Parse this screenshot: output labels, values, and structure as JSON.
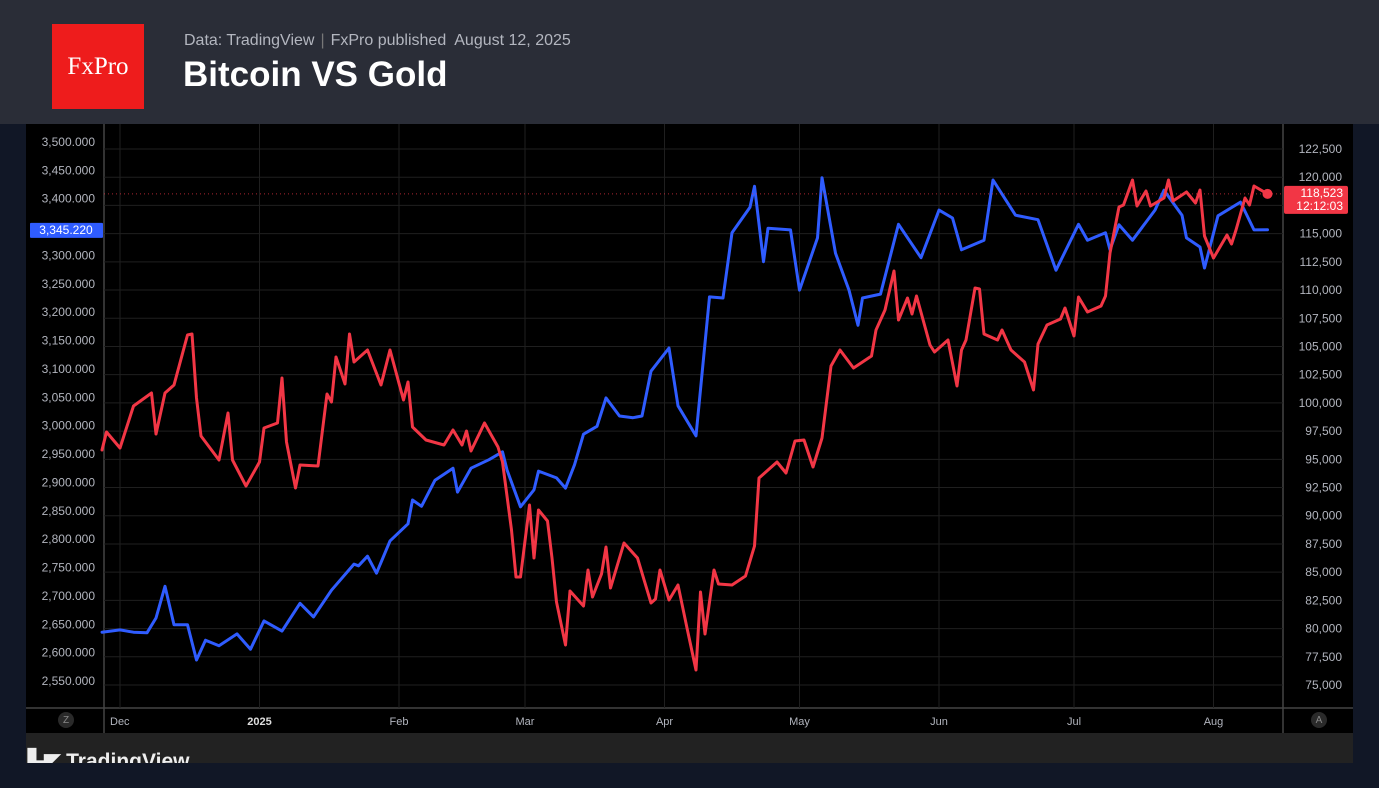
{
  "header": {
    "logo_text": "FxPro",
    "source": "Data: TradingView",
    "publisher": "FxPro published",
    "date": "August 12, 2025",
    "title": "Bitcoin VS Gold"
  },
  "footer": {
    "brand": "TradingView"
  },
  "buttons": {
    "left_scale": "Z",
    "right_scale": "A"
  },
  "colors": {
    "gold": "#2f5cff",
    "bitcoin": "#f23645",
    "grid": "#1f1f1f",
    "axis_text": "#b2b5be"
  },
  "chart_data": {
    "type": "line",
    "title": "Bitcoin VS Gold",
    "x_unit": "days since 2024-12-01",
    "x_ticks": [
      {
        "label": "Dec",
        "day": 0,
        "bold": false
      },
      {
        "label": "2025",
        "day": 31,
        "bold": true
      },
      {
        "label": "Feb",
        "day": 62,
        "bold": false
      },
      {
        "label": "Mar",
        "day": 90,
        "bold": false
      },
      {
        "label": "Apr",
        "day": 121,
        "bold": false
      },
      {
        "label": "May",
        "day": 151,
        "bold": false
      },
      {
        "label": "Jun",
        "day": 182,
        "bold": false
      },
      {
        "label": "Jul",
        "day": 212,
        "bold": false
      },
      {
        "label": "Aug",
        "day": 243,
        "bold": false
      }
    ],
    "left_axis": {
      "ylim": [
        2520,
        3510
      ],
      "ticks": [
        3500,
        3450,
        3400,
        3350,
        3300,
        3250,
        3200,
        3150,
        3100,
        3050,
        3000,
        2950,
        2900,
        2850,
        2800,
        2750,
        2700,
        2650,
        2600,
        2550
      ],
      "tick_labels": [
        "3,500.000",
        "3,450.000",
        "3,400.000",
        "3,300.000",
        "3,250.000",
        "3,200.000",
        "3,150.000",
        "3,100.000",
        "3,050.000",
        "3,000.000",
        "2,950.000",
        "2,900.000",
        "2,850.000",
        "2,800.000",
        "2,750.000",
        "2,700.000",
        "2,650.000",
        "2,600.000",
        "2,550.000"
      ],
      "tick_values": [
        3500,
        3450,
        3400,
        3300,
        3250,
        3200,
        3150,
        3100,
        3050,
        3000,
        2950,
        2900,
        2850,
        2800,
        2750,
        2700,
        2650,
        2600,
        2550
      ],
      "last_label": "3,345.220",
      "last_value": 3345.22
    },
    "right_axis": {
      "ylim": [
        73500,
        124000
      ],
      "tick_labels": [
        "122,500",
        "120,000",
        "115,000",
        "112,500",
        "110,000",
        "107,500",
        "105,000",
        "102,500",
        "100,000",
        "97,500",
        "95,000",
        "92,500",
        "90,000",
        "87,500",
        "85,000",
        "82,500",
        "80,000",
        "77,500",
        "75,000"
      ],
      "tick_values": [
        122500,
        120000,
        115000,
        112500,
        110000,
        107500,
        105000,
        102500,
        100000,
        97500,
        95000,
        92500,
        90000,
        87500,
        85000,
        82500,
        80000,
        77500,
        75000
      ],
      "last_label": "118,523",
      "countdown": "12:12:03",
      "last_value": 118523
    },
    "series": [
      {
        "name": "Gold",
        "axis": "left",
        "color": "#2f5cff",
        "points": [
          [
            -4,
            2636
          ],
          [
            0,
            2640
          ],
          [
            3,
            2636
          ],
          [
            6,
            2635
          ],
          [
            8,
            2661
          ],
          [
            10,
            2717
          ],
          [
            12,
            2649
          ],
          [
            15,
            2649
          ],
          [
            17,
            2587
          ],
          [
            19,
            2622
          ],
          [
            22,
            2612
          ],
          [
            26,
            2633
          ],
          [
            29,
            2606
          ],
          [
            32,
            2656
          ],
          [
            36,
            2638
          ],
          [
            40,
            2687
          ],
          [
            43,
            2663
          ],
          [
            47,
            2710
          ],
          [
            52,
            2756
          ],
          [
            53,
            2753
          ],
          [
            55,
            2770
          ],
          [
            57,
            2740
          ],
          [
            60,
            2797
          ],
          [
            64,
            2827
          ],
          [
            65,
            2869
          ],
          [
            67,
            2858
          ],
          [
            70,
            2904
          ],
          [
            74,
            2925
          ],
          [
            75,
            2883
          ],
          [
            78,
            2925
          ],
          [
            82,
            2940
          ],
          [
            85,
            2954
          ],
          [
            86,
            2922
          ],
          [
            89,
            2857
          ],
          [
            92,
            2887
          ],
          [
            93,
            2920
          ],
          [
            97,
            2908
          ],
          [
            99,
            2890
          ],
          [
            101,
            2931
          ],
          [
            103,
            2985
          ],
          [
            106,
            2999
          ],
          [
            108,
            3049
          ],
          [
            111,
            3017
          ],
          [
            114,
            3014
          ],
          [
            116,
            3017
          ],
          [
            118,
            3096
          ],
          [
            122,
            3137
          ],
          [
            124,
            3035
          ],
          [
            128,
            2982
          ],
          [
            131,
            3227
          ],
          [
            134,
            3225
          ],
          [
            136,
            3340
          ],
          [
            140,
            3385
          ],
          [
            141,
            3422
          ],
          [
            143,
            3289
          ],
          [
            144,
            3348
          ],
          [
            149,
            3345
          ],
          [
            151,
            3239
          ],
          [
            155,
            3331
          ],
          [
            156,
            3437
          ],
          [
            159,
            3304
          ],
          [
            162,
            3239
          ],
          [
            164,
            3177
          ],
          [
            165,
            3225
          ],
          [
            169,
            3232
          ],
          [
            173,
            3355
          ],
          [
            178,
            3296
          ],
          [
            182,
            3380
          ],
          [
            185,
            3366
          ],
          [
            187,
            3310
          ],
          [
            192,
            3327
          ],
          [
            194,
            3433
          ],
          [
            199,
            3371
          ],
          [
            204,
            3363
          ],
          [
            208,
            3274
          ],
          [
            213,
            3355
          ],
          [
            215,
            3327
          ],
          [
            219,
            3340
          ],
          [
            220,
            3310
          ],
          [
            222,
            3354
          ],
          [
            225,
            3327
          ],
          [
            230,
            3380
          ],
          [
            232,
            3415
          ],
          [
            236,
            3371
          ],
          [
            237,
            3331
          ],
          [
            240,
            3315
          ],
          [
            241,
            3278
          ],
          [
            244,
            3370
          ],
          [
            249,
            3394
          ],
          [
            252,
            3345
          ],
          [
            255,
            3345.22
          ]
        ]
      },
      {
        "name": "Bitcoin",
        "axis": "right",
        "color": "#f23645",
        "points": [
          [
            -4,
            95825
          ],
          [
            -3,
            97421
          ],
          [
            0,
            96003
          ],
          [
            3,
            99725
          ],
          [
            7,
            100877
          ],
          [
            8,
            97243
          ],
          [
            10,
            100877
          ],
          [
            12,
            101586
          ],
          [
            15,
            106017
          ],
          [
            16,
            106106
          ],
          [
            17,
            100434
          ],
          [
            18,
            97066
          ],
          [
            22,
            94939
          ],
          [
            24,
            99104
          ],
          [
            25,
            94939
          ],
          [
            28,
            92635
          ],
          [
            31,
            94762
          ],
          [
            32,
            97775
          ],
          [
            35,
            98218
          ],
          [
            36,
            102206
          ],
          [
            37,
            96534
          ],
          [
            39,
            92458
          ],
          [
            40,
            94496
          ],
          [
            44,
            94407
          ],
          [
            46,
            100788
          ],
          [
            47,
            100079
          ],
          [
            48,
            104067
          ],
          [
            50,
            101674
          ],
          [
            51,
            106106
          ],
          [
            52,
            103624
          ],
          [
            55,
            104687
          ],
          [
            58,
            101586
          ],
          [
            60,
            104687
          ],
          [
            63,
            100256
          ],
          [
            64,
            101852
          ],
          [
            65,
            97864
          ],
          [
            68,
            96712
          ],
          [
            72,
            96268
          ],
          [
            74,
            97597
          ],
          [
            76,
            96268
          ],
          [
            77,
            97508
          ],
          [
            78,
            95737
          ],
          [
            81,
            98218
          ],
          [
            84,
            96091
          ],
          [
            85,
            94762
          ],
          [
            87,
            88736
          ],
          [
            88,
            84571
          ],
          [
            89,
            84571
          ],
          [
            91,
            90951
          ],
          [
            92,
            86254
          ],
          [
            93,
            90508
          ],
          [
            95,
            89533
          ],
          [
            96,
            86254
          ],
          [
            97,
            82355
          ],
          [
            99,
            78544
          ],
          [
            100,
            83330
          ],
          [
            103,
            82001
          ],
          [
            104,
            85191
          ],
          [
            105,
            82798
          ],
          [
            107,
            84836
          ],
          [
            108,
            87229
          ],
          [
            109,
            83596
          ],
          [
            112,
            87584
          ],
          [
            115,
            86254
          ],
          [
            118,
            82266
          ],
          [
            119,
            82621
          ],
          [
            120,
            85191
          ],
          [
            122,
            82532
          ],
          [
            124,
            83862
          ],
          [
            126,
            80051
          ],
          [
            128,
            76329
          ],
          [
            129,
            83242
          ],
          [
            130,
            79520
          ],
          [
            132,
            85191
          ],
          [
            133,
            83950
          ],
          [
            136,
            83862
          ],
          [
            139,
            84659
          ],
          [
            141,
            87318
          ],
          [
            142,
            93344
          ],
          [
            146,
            94762
          ],
          [
            148,
            93788
          ],
          [
            150,
            96623
          ],
          [
            152,
            96712
          ],
          [
            154,
            94319
          ],
          [
            156,
            96889
          ],
          [
            158,
            103269
          ],
          [
            160,
            104687
          ],
          [
            163,
            103092
          ],
          [
            167,
            104156
          ],
          [
            168,
            106460
          ],
          [
            170,
            108232
          ],
          [
            172,
            111688
          ],
          [
            173,
            107346
          ],
          [
            175,
            109296
          ],
          [
            176,
            107878
          ],
          [
            177,
            109473
          ],
          [
            180,
            105130
          ],
          [
            181,
            104510
          ],
          [
            184,
            105573
          ],
          [
            186,
            101497
          ],
          [
            187,
            104687
          ],
          [
            188,
            105573
          ],
          [
            190,
            110182
          ],
          [
            191,
            110093
          ],
          [
            192,
            106106
          ],
          [
            195,
            105573
          ],
          [
            196,
            106460
          ],
          [
            198,
            104687
          ],
          [
            201,
            103624
          ],
          [
            203,
            101143
          ],
          [
            204,
            105219
          ],
          [
            206,
            106903
          ],
          [
            209,
            107435
          ],
          [
            210,
            108409
          ],
          [
            212,
            105928
          ],
          [
            213,
            109384
          ],
          [
            215,
            108055
          ],
          [
            218,
            108586
          ],
          [
            219,
            109473
          ],
          [
            220,
            113284
          ],
          [
            222,
            117360
          ],
          [
            223,
            117537
          ],
          [
            225,
            119753
          ],
          [
            226,
            117449
          ],
          [
            228,
            118778
          ],
          [
            229,
            117449
          ],
          [
            232,
            118158
          ],
          [
            233,
            119753
          ],
          [
            234,
            117892
          ],
          [
            237,
            118689
          ],
          [
            239,
            117715
          ],
          [
            240,
            118867
          ],
          [
            241,
            114790
          ],
          [
            243,
            112840
          ],
          [
            246,
            114878
          ],
          [
            247,
            114081
          ],
          [
            248,
            115322
          ],
          [
            250,
            118158
          ],
          [
            251,
            117537
          ],
          [
            252,
            119221
          ],
          [
            255,
            118523
          ]
        ]
      }
    ]
  }
}
